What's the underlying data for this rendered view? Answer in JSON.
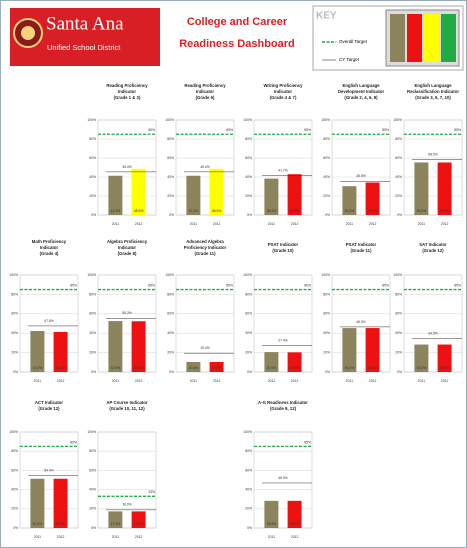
{
  "header": {
    "district": "Santa Ana",
    "subtitle": "Unified School District",
    "title_lines": [
      "College and Career",
      "Readiness Dashboard"
    ]
  },
  "key": {
    "title": "KEY",
    "overall": "Overall Target",
    "cy": "CY Target"
  },
  "chart_data": [
    {
      "type": "bar",
      "title": [
        "Reading Proficiency",
        "Indicator",
        "(Grade 1 & 3)"
      ],
      "categories": [
        "2011",
        "2012"
      ],
      "values": [
        41.3,
        48.5
      ],
      "value_labels": [
        "41.3%",
        "48.5%"
      ],
      "colors": [
        "#8c845c",
        "#ffff00"
      ],
      "ylim": [
        0,
        100
      ],
      "yticks": [
        {
          "value": 0,
          "label": "0%"
        },
        {
          "value": 20,
          "label": "20%"
        },
        {
          "value": 40,
          "label": "40%"
        },
        {
          "value": 60,
          "label": "60%"
        },
        {
          "value": 80,
          "label": "80%"
        },
        {
          "value": 100,
          "label": "100%"
        }
      ],
      "target": 85,
      "target_label": "85%",
      "cy_target": 45.4,
      "cy_target_label": "45.4%"
    },
    {
      "type": "bar",
      "title": [
        "Reading Proficiency",
        "Indicator",
        "(Grade 6)"
      ],
      "categories": [
        "2011",
        "2012"
      ],
      "values": [
        41.3,
        48.5
      ],
      "value_labels": [
        "41.3%",
        "48.5%"
      ],
      "colors": [
        "#8c845c",
        "#ffff00"
      ],
      "ylim": [
        0,
        100
      ],
      "yticks": [
        {
          "value": 0,
          "label": "0%"
        },
        {
          "value": 20,
          "label": "20%"
        },
        {
          "value": 40,
          "label": "40%"
        },
        {
          "value": 60,
          "label": "60%"
        },
        {
          "value": 80,
          "label": "80%"
        },
        {
          "value": 100,
          "label": "100%"
        }
      ],
      "target": 85,
      "target_label": "85%",
      "cy_target": 45.4,
      "cy_target_label": "45.4%"
    },
    {
      "type": "bar",
      "title": [
        "Writing Proficiency",
        "Indicator",
        "(Grade 4 & 7)"
      ],
      "categories": [
        "2011",
        "2012"
      ],
      "values": [
        38.3,
        42.9
      ],
      "value_labels": [
        "38.3%",
        "42.9%"
      ],
      "colors": [
        "#8c845c",
        "#ee1111"
      ],
      "ylim": [
        0,
        100
      ],
      "yticks": [
        {
          "value": 0,
          "label": "0%"
        },
        {
          "value": 20,
          "label": "20%"
        },
        {
          "value": 40,
          "label": "40%"
        },
        {
          "value": 60,
          "label": "60%"
        },
        {
          "value": 80,
          "label": "80%"
        },
        {
          "value": 100,
          "label": "100%"
        }
      ],
      "target": 85,
      "target_label": "85%",
      "cy_target": 41.7,
      "cy_target_label": "41.7%"
    },
    {
      "type": "bar",
      "title": [
        "English Language",
        "Development Indicator",
        "(Grade 2, 4, 6, 9)"
      ],
      "categories": [
        "2011",
        "2012"
      ],
      "values": [
        30.3,
        34.2
      ],
      "value_labels": [
        "30.3%",
        "34.2%"
      ],
      "colors": [
        "#8c845c",
        "#ee1111"
      ],
      "ylim": [
        0,
        100
      ],
      "yticks": [
        {
          "value": 0,
          "label": "0%"
        },
        {
          "value": 20,
          "label": "20%"
        },
        {
          "value": 40,
          "label": "40%"
        },
        {
          "value": 60,
          "label": "60%"
        },
        {
          "value": 80,
          "label": "80%"
        },
        {
          "value": 100,
          "label": "100%"
        }
      ],
      "target": 85,
      "target_label": "85%",
      "cy_target": 35.5,
      "cy_target_label": "35.5%"
    },
    {
      "type": "bar",
      "title": [
        "English Language",
        "Reclassification Indicator",
        "(Grade 3, 5, 7, 10)"
      ],
      "categories": [
        "2011",
        "2012"
      ],
      "values": [
        55.3,
        55.3
      ],
      "value_labels": [
        "55.3%",
        "55.3%"
      ],
      "colors": [
        "#8c845c",
        "#ee1111"
      ],
      "ylim": [
        0,
        100
      ],
      "yticks": [
        {
          "value": 0,
          "label": "0%"
        },
        {
          "value": 20,
          "label": "20%"
        },
        {
          "value": 40,
          "label": "40%"
        },
        {
          "value": 60,
          "label": "60%"
        },
        {
          "value": 80,
          "label": "80%"
        },
        {
          "value": 100,
          "label": "100%"
        }
      ],
      "target": 85,
      "target_label": "85%",
      "cy_target": 58.5,
      "cy_target_label": "58.5%"
    },
    {
      "type": "bar",
      "title": [
        "Math Proficiency",
        "Indicator",
        "(Grade 4)"
      ],
      "categories": [
        "2011",
        "2012"
      ],
      "values": [
        42.3,
        41.3
      ],
      "value_labels": [
        "42.3%",
        "41.3%"
      ],
      "colors": [
        "#8c845c",
        "#ee1111"
      ],
      "ylim": [
        0,
        100
      ],
      "yticks": [
        {
          "value": 0,
          "label": "0%"
        },
        {
          "value": 20,
          "label": "20%"
        },
        {
          "value": 40,
          "label": "40%"
        },
        {
          "value": 60,
          "label": "60%"
        },
        {
          "value": 80,
          "label": "80%"
        },
        {
          "value": 100,
          "label": "100%"
        }
      ],
      "target": 85,
      "target_label": "85%",
      "cy_target": 47.5,
      "cy_target_label": "47.5%"
    },
    {
      "type": "bar",
      "title": [
        "Algebra Proficiency",
        "Indicator",
        "(Grade 8)"
      ],
      "categories": [
        "2011",
        "2012"
      ],
      "values": [
        52.5,
        52.3
      ],
      "value_labels": [
        "52.5%",
        "52.3%"
      ],
      "colors": [
        "#8c845c",
        "#ee1111"
      ],
      "ylim": [
        0,
        100
      ],
      "yticks": [
        {
          "value": 0,
          "label": "0%"
        },
        {
          "value": 20,
          "label": "20%"
        },
        {
          "value": 40,
          "label": "40%"
        },
        {
          "value": 60,
          "label": "60%"
        },
        {
          "value": 80,
          "label": "80%"
        },
        {
          "value": 100,
          "label": "100%"
        }
      ],
      "target": 85,
      "target_label": "85%",
      "cy_target": 55.3,
      "cy_target_label": "55.3%"
    },
    {
      "type": "bar",
      "title": [
        "Advanced Algebra",
        "Proficiency Indicator",
        "(Grade 11)"
      ],
      "categories": [
        "2011",
        "2012"
      ],
      "values": [
        10.3,
        10.3
      ],
      "value_labels": [
        "10.3%",
        "10.3%"
      ],
      "colors": [
        "#8c845c",
        "#ee1111"
      ],
      "ylim": [
        0,
        100
      ],
      "yticks": [
        {
          "value": 0,
          "label": "0%"
        },
        {
          "value": 20,
          "label": "20%"
        },
        {
          "value": 40,
          "label": "40%"
        },
        {
          "value": 60,
          "label": "60%"
        },
        {
          "value": 80,
          "label": "80%"
        },
        {
          "value": 100,
          "label": "100%"
        }
      ],
      "target": 85,
      "target_label": "85%",
      "cy_target": 19.4,
      "cy_target_label": "19.4%"
    },
    {
      "type": "bar",
      "title": [
        "PSAT Indicator",
        "(Grade 10)"
      ],
      "categories": [
        "2011",
        "2012"
      ],
      "values": [
        20.5,
        20.3
      ],
      "value_labels": [
        "20.5%",
        "20.3%"
      ],
      "colors": [
        "#8c845c",
        "#ee1111"
      ],
      "ylim": [
        0,
        100
      ],
      "yticks": [
        {
          "value": 0,
          "label": "0%"
        },
        {
          "value": 20,
          "label": "20%"
        },
        {
          "value": 40,
          "label": "40%"
        },
        {
          "value": 60,
          "label": "60%"
        },
        {
          "value": 80,
          "label": "80%"
        },
        {
          "value": 100,
          "label": "100%"
        }
      ],
      "target": 85,
      "target_label": "85%",
      "cy_target": 27.4,
      "cy_target_label": "27.4%"
    },
    {
      "type": "bar",
      "title": [
        "PSAT Indicator",
        "(Grade 11)"
      ],
      "categories": [
        "2011",
        "2012"
      ],
      "values": [
        45.3,
        45.3
      ],
      "value_labels": [
        "45.3%",
        "45.3%"
      ],
      "colors": [
        "#8c845c",
        "#ee1111"
      ],
      "ylim": [
        0,
        100
      ],
      "yticks": [
        {
          "value": 0,
          "label": "0%"
        },
        {
          "value": 20,
          "label": "20%"
        },
        {
          "value": 40,
          "label": "40%"
        },
        {
          "value": 60,
          "label": "60%"
        },
        {
          "value": 80,
          "label": "80%"
        },
        {
          "value": 100,
          "label": "100%"
        }
      ],
      "target": 85,
      "target_label": "85%",
      "cy_target": 46.5,
      "cy_target_label": "46.5%"
    },
    {
      "type": "bar",
      "title": [
        "SAT Indicator",
        "(Grade 12)"
      ],
      "categories": [
        "2011",
        "2012"
      ],
      "values": [
        28.3,
        28.3
      ],
      "value_labels": [
        "28.3%",
        "28.3%"
      ],
      "colors": [
        "#8c845c",
        "#ee1111"
      ],
      "ylim": [
        0,
        100
      ],
      "yticks": [
        {
          "value": 0,
          "label": "0%"
        },
        {
          "value": 20,
          "label": "20%"
        },
        {
          "value": 40,
          "label": "40%"
        },
        {
          "value": 60,
          "label": "60%"
        },
        {
          "value": 80,
          "label": "80%"
        },
        {
          "value": 100,
          "label": "100%"
        }
      ],
      "target": 85,
      "target_label": "85%",
      "cy_target": 34.5,
      "cy_target_label": "34.5%"
    },
    {
      "type": "bar",
      "title": [
        "ACT Indicator",
        "(Grade 12)"
      ],
      "categories": [
        "2011",
        "2012"
      ],
      "values": [
        51.3,
        51.3
      ],
      "value_labels": [
        "51.3%",
        "51.3%"
      ],
      "colors": [
        "#8c845c",
        "#ee1111"
      ],
      "ylim": [
        0,
        100
      ],
      "yticks": [
        {
          "value": 0,
          "label": "0%"
        },
        {
          "value": 20,
          "label": "20%"
        },
        {
          "value": 40,
          "label": "40%"
        },
        {
          "value": 60,
          "label": "60%"
        },
        {
          "value": 80,
          "label": "80%"
        },
        {
          "value": 100,
          "label": "100%"
        }
      ],
      "target": 85,
      "target_label": "85%",
      "cy_target": 54.4,
      "cy_target_label": "54.4%"
    },
    {
      "type": "bar",
      "title": [
        "AP Course Indicator",
        "(Grade 10, 11, 12)"
      ],
      "categories": [
        "2011",
        "2012"
      ],
      "values": [
        17.3,
        17.3
      ],
      "value_labels": [
        "17.3%",
        "17.3%"
      ],
      "colors": [
        "#8c845c",
        "#ee1111"
      ],
      "ylim": [
        0,
        100
      ],
      "yticks": [
        {
          "value": 0,
          "label": "0%"
        },
        {
          "value": 20,
          "label": "20%"
        },
        {
          "value": 40,
          "label": "40%"
        },
        {
          "value": 60,
          "label": "60%"
        },
        {
          "value": 80,
          "label": "80%"
        },
        {
          "value": 100,
          "label": "100%"
        }
      ],
      "target": 33,
      "target_label": "33%",
      "cy_target": 18.9,
      "cy_target_label": "18.9%"
    },
    {
      "type": "bar",
      "title": [
        "A-G Readiness Indicator",
        "(Grade 9, 12)"
      ],
      "categories": [
        "2011",
        "2012"
      ],
      "values": [
        28.3,
        28.3
      ],
      "value_labels": [
        "28.3%",
        "28.3%"
      ],
      "colors": [
        "#8c845c",
        "#ee1111"
      ],
      "ylim": [
        0,
        100
      ],
      "yticks": [
        {
          "value": 0,
          "label": "0%"
        },
        {
          "value": 20,
          "label": "20%"
        },
        {
          "value": 40,
          "label": "40%"
        },
        {
          "value": 60,
          "label": "60%"
        },
        {
          "value": 80,
          "label": "80%"
        },
        {
          "value": 100,
          "label": "100%"
        }
      ],
      "target": 85,
      "target_label": "85%",
      "cy_target": 46.9,
      "cy_target_label": "46.9%"
    }
  ]
}
